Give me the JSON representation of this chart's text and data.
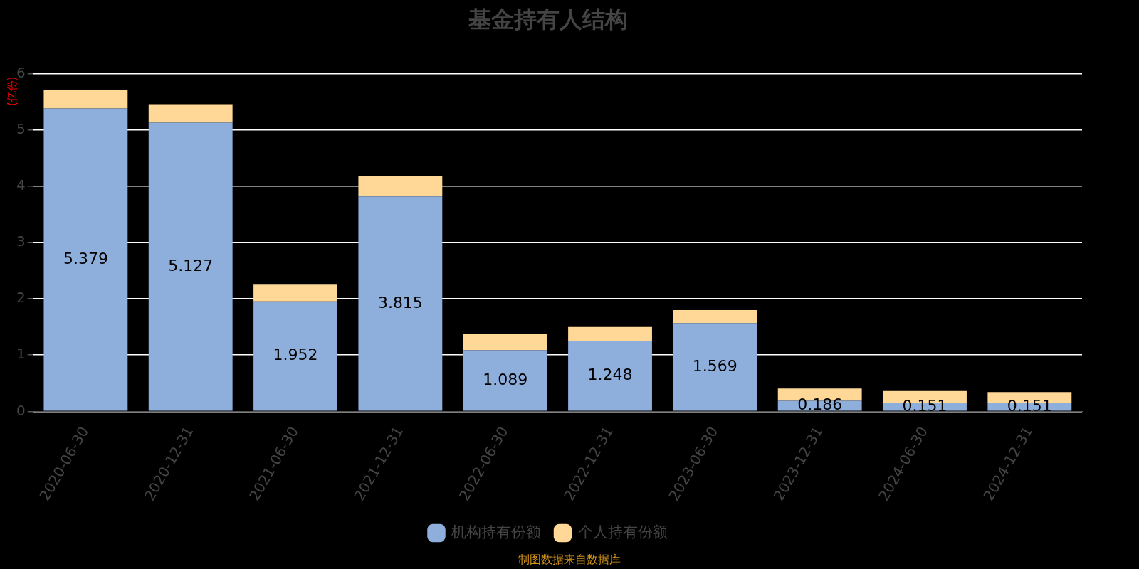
{
  "chart_data": {
    "type": "bar",
    "title": "基金持有人结构",
    "ylabel": "(亿份)",
    "stacked": true,
    "categories": [
      "2020-06-30",
      "2020-12-31",
      "2021-06-30",
      "2021-12-31",
      "2022-06-30",
      "2022-12-31",
      "2023-06-30",
      "2023-12-31",
      "2024-06-30",
      "2024-12-31"
    ],
    "series": [
      {
        "name": "机构持有份额",
        "color": "#8eaedb",
        "values": [
          5.379,
          5.127,
          1.952,
          3.815,
          1.089,
          1.248,
          1.569,
          0.186,
          0.151,
          0.151
        ],
        "value_labels": [
          "5.379",
          "5.127",
          "1.952",
          "3.815",
          "1.089",
          "1.248",
          "1.569",
          "0.186",
          "0.151",
          "0.151"
        ]
      },
      {
        "name": "个人持有份额",
        "color": "#ffd898",
        "values": [
          0.33,
          0.33,
          0.31,
          0.36,
          0.29,
          0.25,
          0.23,
          0.22,
          0.21,
          0.19
        ]
      }
    ],
    "ylim": [
      0,
      6
    ],
    "yticks": [
      0,
      1,
      2,
      3,
      4,
      5,
      6
    ],
    "grid": "y",
    "legend": "bottom",
    "annotations": [
      "制图数据来自数据库"
    ]
  }
}
